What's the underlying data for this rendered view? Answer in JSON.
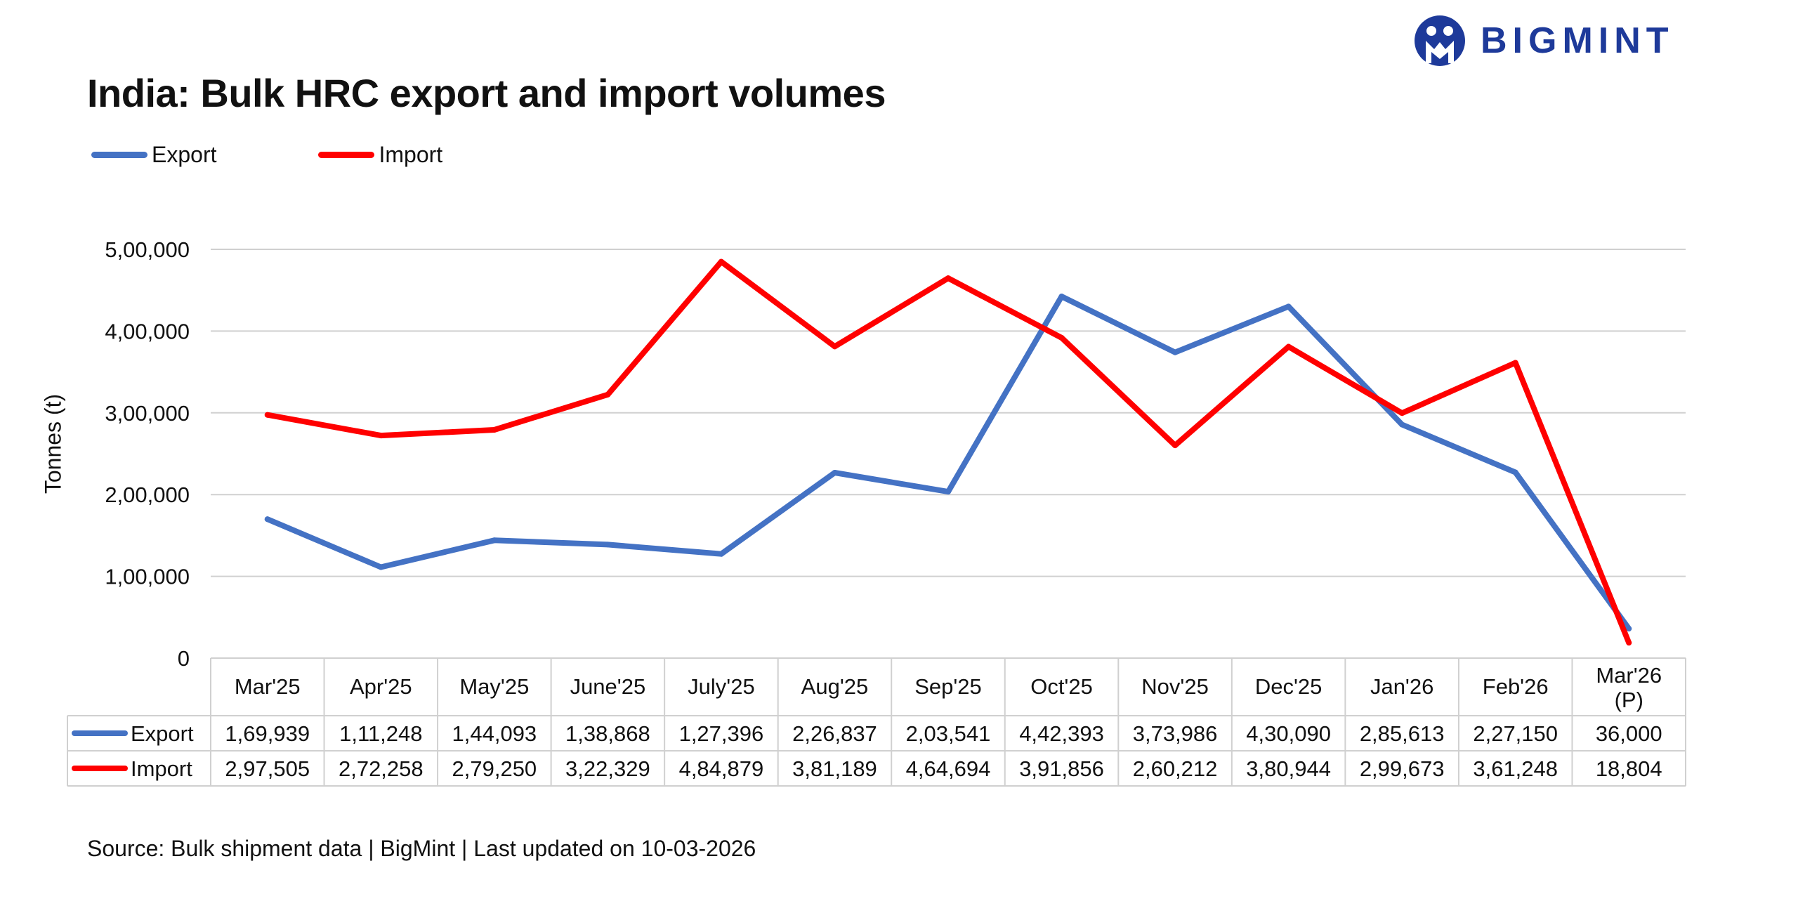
{
  "brand": {
    "name": "BIGMINT",
    "color": "#1e3a9a"
  },
  "source_note": "Source: Bulk shipment data | BigMint | Last updated on 10-03-2026",
  "chart_data": {
    "type": "line",
    "title": "India: Bulk HRC export and import volumes",
    "xlabel": "",
    "ylabel": "Tonnes (t)",
    "ylim": [
      0,
      500000
    ],
    "yticks": [
      0,
      100000,
      200000,
      300000,
      400000,
      500000
    ],
    "ytick_labels": [
      "0",
      "1,00,000",
      "2,00,000",
      "3,00,000",
      "4,00,000",
      "5,00,000"
    ],
    "grid": true,
    "legend_position": "top-left",
    "categories": [
      "Mar'25",
      "Apr'25",
      "May'25",
      "June'25",
      "July'25",
      "Aug'25",
      "Sep'25",
      "Oct'25",
      "Nov'25",
      "Dec'25",
      "Jan'26",
      "Feb'26",
      "Mar'26 (P)"
    ],
    "series": [
      {
        "name": "Export",
        "color": "#4472c4",
        "values": [
          169939,
          111248,
          144093,
          138868,
          127396,
          226837,
          203541,
          442393,
          373986,
          430090,
          285613,
          227150,
          36000
        ],
        "labels": [
          "1,69,939",
          "1,11,248",
          "1,44,093",
          "1,38,868",
          "1,27,396",
          "2,26,837",
          "2,03,541",
          "4,42,393",
          "3,73,986",
          "4,30,090",
          "2,85,613",
          "2,27,150",
          "36,000"
        ]
      },
      {
        "name": "Import",
        "color": "#ff0000",
        "values": [
          297505,
          272258,
          279250,
          322329,
          484879,
          381189,
          464694,
          391856,
          260212,
          380944,
          299673,
          361248,
          18804
        ],
        "labels": [
          "2,97,505",
          "2,72,258",
          "2,79,250",
          "3,22,329",
          "4,84,879",
          "3,81,189",
          "4,64,694",
          "3,91,856",
          "2,60,212",
          "3,80,944",
          "2,99,673",
          "3,61,248",
          "18,804"
        ]
      }
    ]
  }
}
